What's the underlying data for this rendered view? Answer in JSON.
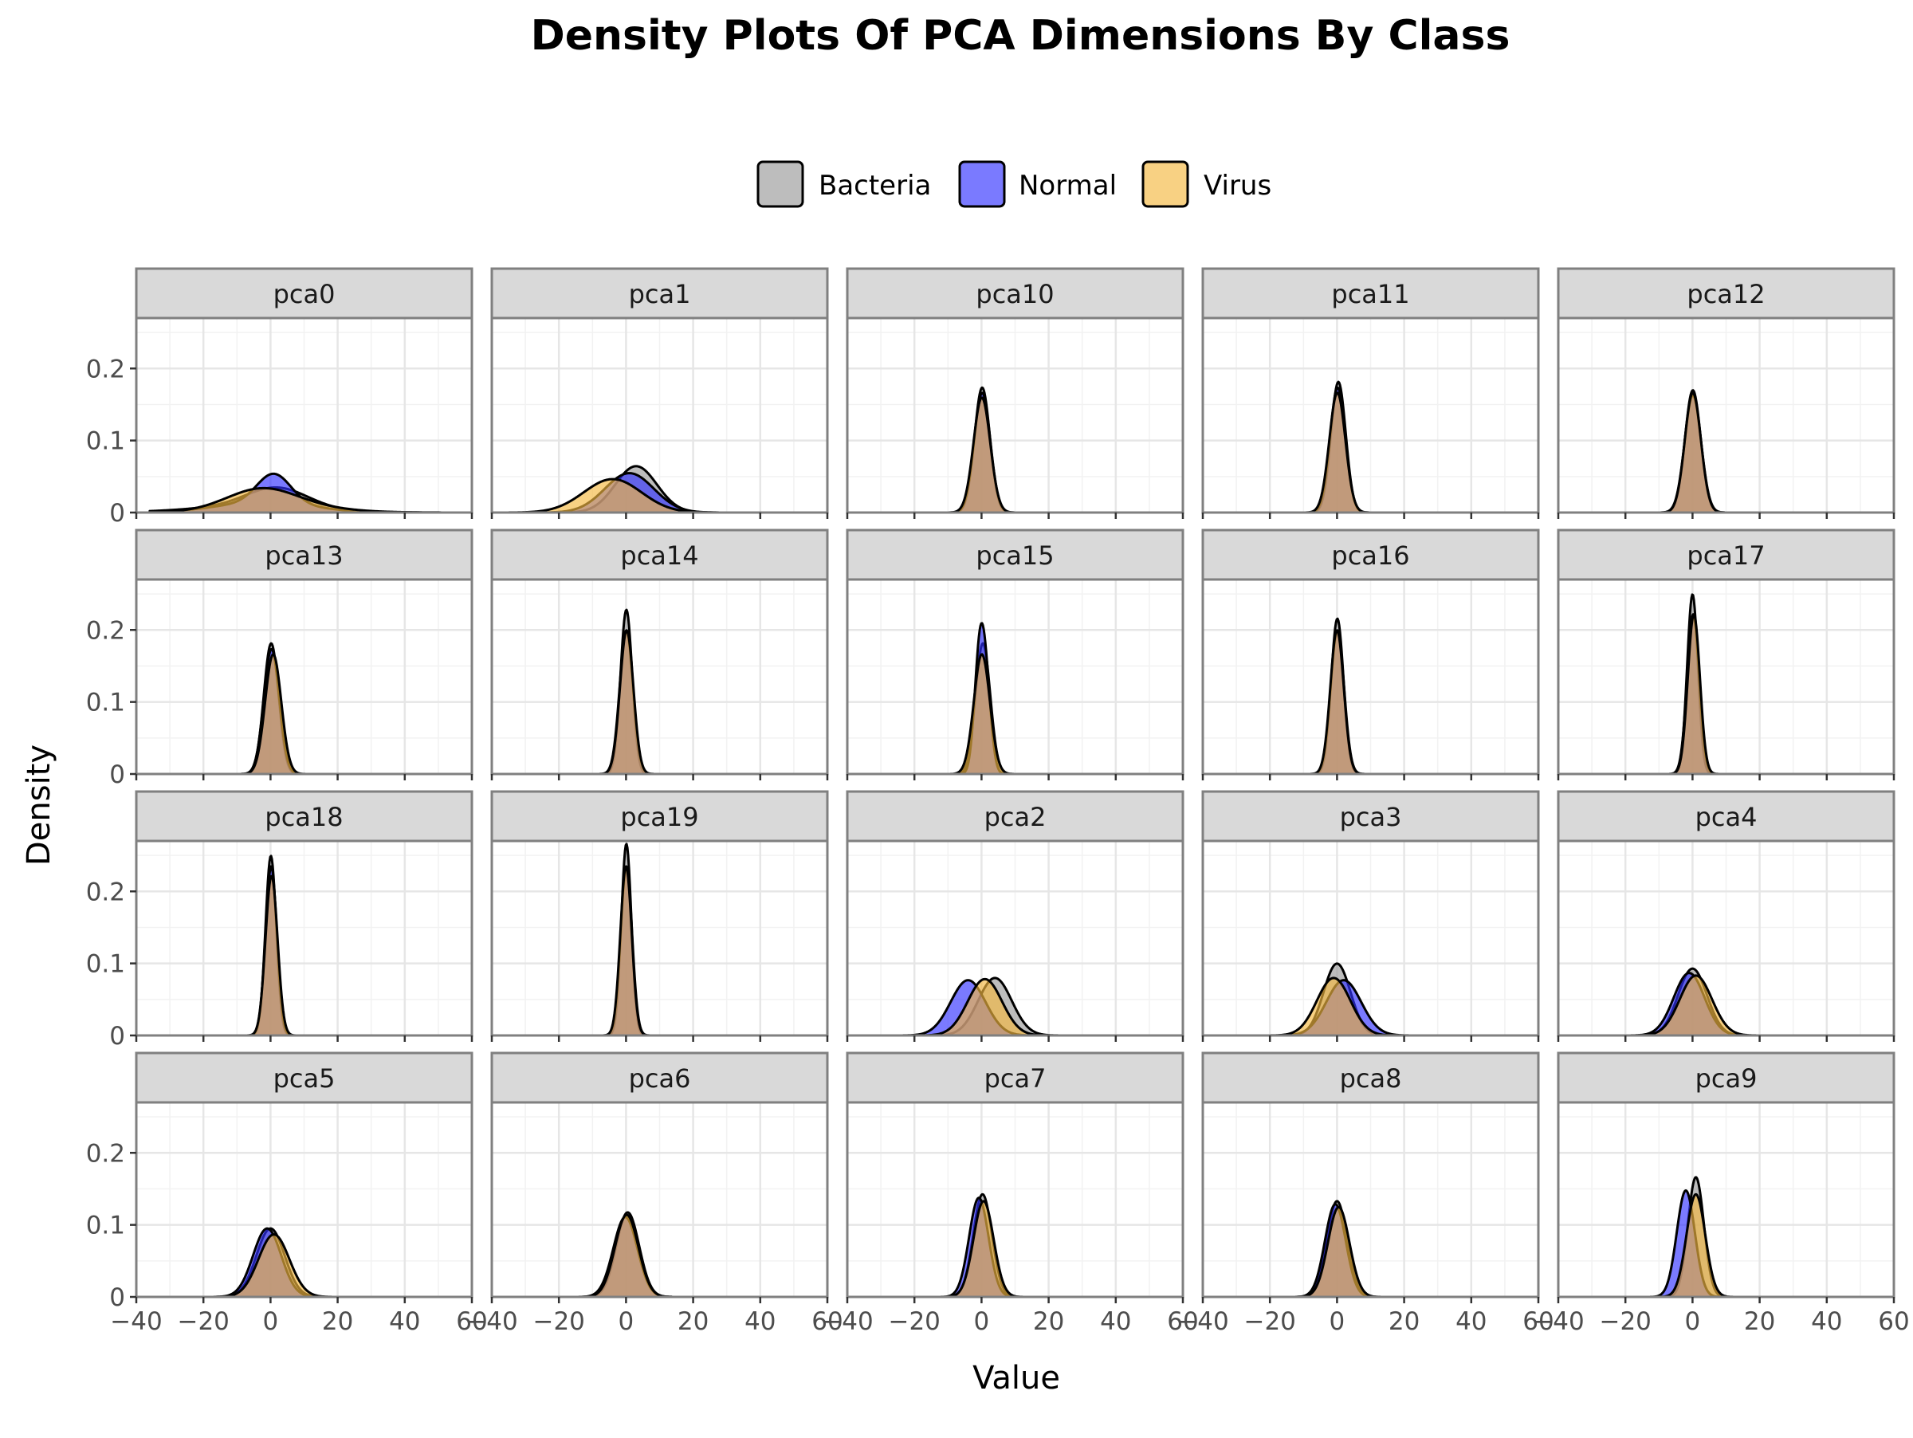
{
  "chart_data": {
    "type": "area",
    "title": "Density Plots Of PCA Dimensions By Class",
    "xlabel": "Value",
    "ylabel": "Density",
    "xlim": [
      -40,
      60
    ],
    "ylim": [
      0,
      0.27
    ],
    "x_ticks": [
      -40,
      -20,
      0,
      20,
      40,
      60
    ],
    "x_tick_labels": [
      "−40",
      "−20",
      "0",
      "20",
      "40",
      "60"
    ],
    "y_ticks": [
      0,
      0.1,
      0.2
    ],
    "y_tick_labels": [
      "0",
      "0.1",
      "0.2"
    ],
    "grid": true,
    "legend_position": "top",
    "x_range": [
      -36,
      55
    ],
    "series_meta": [
      {
        "name": "Bacteria",
        "fill": "#999999",
        "opacity": 0.65
      },
      {
        "name": "Normal",
        "fill": "#3333ff",
        "opacity": 0.65
      },
      {
        "name": "Virus",
        "fill": "#f5b841",
        "opacity": 0.65
      }
    ],
    "mixture_components": "per series: [weight, mean, sd] (Gaussian mixture approximation of each density curve)",
    "panels": [
      {
        "label": "pca0",
        "series": [
          {
            "name": "Bacteria",
            "components": [
              [
                0.6,
                2,
                9
              ],
              [
                0.4,
                -5,
                18
              ]
            ]
          },
          {
            "name": "Normal",
            "components": [
              [
                0.5,
                1,
                5
              ],
              [
                0.5,
                -2,
                14
              ]
            ]
          },
          {
            "name": "Virus",
            "components": [
              [
                0.6,
                -3,
                10
              ],
              [
                0.4,
                3,
                15
              ]
            ]
          }
        ]
      },
      {
        "label": "pca1",
        "series": [
          {
            "name": "Bacteria",
            "components": [
              [
                1.0,
                3,
                6.2
              ]
            ]
          },
          {
            "name": "Normal",
            "components": [
              [
                1.0,
                1,
                7.3
              ]
            ]
          },
          {
            "name": "Virus",
            "components": [
              [
                1.0,
                -4,
                8.6
              ]
            ]
          }
        ]
      },
      {
        "label": "pca10",
        "series": [
          {
            "name": "Bacteria",
            "components": [
              [
                1.0,
                0.2,
                2.3
              ]
            ]
          },
          {
            "name": "Normal",
            "components": [
              [
                1.0,
                0.2,
                2.4
              ]
            ]
          },
          {
            "name": "Virus",
            "components": [
              [
                1.0,
                0.1,
                2.5
              ]
            ]
          }
        ]
      },
      {
        "label": "pca11",
        "series": [
          {
            "name": "Bacteria",
            "components": [
              [
                1.0,
                0.4,
                2.2
              ]
            ]
          },
          {
            "name": "Normal",
            "components": [
              [
                1.0,
                0.2,
                2.3
              ]
            ]
          },
          {
            "name": "Virus",
            "components": [
              [
                1.0,
                0.1,
                2.4
              ]
            ]
          }
        ]
      },
      {
        "label": "pca12",
        "series": [
          {
            "name": "Bacteria",
            "components": [
              [
                1.0,
                0.1,
                2.35
              ]
            ]
          },
          {
            "name": "Normal",
            "components": [
              [
                1.0,
                0.1,
                2.45
              ]
            ]
          },
          {
            "name": "Virus",
            "components": [
              [
                1.0,
                0.1,
                2.4
              ]
            ]
          }
        ]
      },
      {
        "label": "pca13",
        "series": [
          {
            "name": "Bacteria",
            "components": [
              [
                1.0,
                0.2,
                2.2
              ]
            ]
          },
          {
            "name": "Normal",
            "components": [
              [
                1.0,
                0.3,
                2.3
              ]
            ]
          },
          {
            "name": "Virus",
            "components": [
              [
                1.0,
                0.8,
                2.4
              ]
            ]
          }
        ]
      },
      {
        "label": "pca14",
        "series": [
          {
            "name": "Bacteria",
            "components": [
              [
                1.0,
                0.1,
                1.75
              ]
            ]
          },
          {
            "name": "Normal",
            "components": [
              [
                1.0,
                0.1,
                2.0
              ]
            ]
          },
          {
            "name": "Virus",
            "components": [
              [
                1.0,
                0.2,
                2.0
              ]
            ]
          }
        ]
      },
      {
        "label": "pca15",
        "series": [
          {
            "name": "Bacteria",
            "components": [
              [
                1.0,
                0.4,
                2.2
              ]
            ]
          },
          {
            "name": "Normal",
            "components": [
              [
                0.5,
                -0.8,
                1.5
              ],
              [
                0.5,
                1.2,
                1.6
              ]
            ]
          },
          {
            "name": "Virus",
            "components": [
              [
                1.0,
                0.1,
                2.4
              ]
            ]
          }
        ]
      },
      {
        "label": "pca16",
        "series": [
          {
            "name": "Bacteria",
            "components": [
              [
                1.0,
                0.1,
                1.85
              ]
            ]
          },
          {
            "name": "Normal",
            "components": [
              [
                1.0,
                0.1,
                2.0
              ]
            ]
          },
          {
            "name": "Virus",
            "components": [
              [
                1.0,
                0.0,
                2.0
              ]
            ]
          }
        ]
      },
      {
        "label": "pca17",
        "series": [
          {
            "name": "Bacteria",
            "components": [
              [
                1.0,
                0.0,
                1.6
              ]
            ]
          },
          {
            "name": "Normal",
            "components": [
              [
                1.0,
                0.2,
                1.8
              ]
            ]
          },
          {
            "name": "Virus",
            "components": [
              [
                1.0,
                0.4,
                1.8
              ]
            ]
          }
        ]
      },
      {
        "label": "pca18",
        "series": [
          {
            "name": "Bacteria",
            "components": [
              [
                1.0,
                0.1,
                1.6
              ]
            ]
          },
          {
            "name": "Normal",
            "components": [
              [
                1.0,
                0.2,
                1.7
              ]
            ]
          },
          {
            "name": "Virus",
            "components": [
              [
                1.0,
                0.3,
                1.8
              ]
            ]
          }
        ]
      },
      {
        "label": "pca19",
        "series": [
          {
            "name": "Bacteria",
            "components": [
              [
                1.0,
                0.1,
                1.5
              ]
            ]
          },
          {
            "name": "Normal",
            "components": [
              [
                1.0,
                0.1,
                1.7
              ]
            ]
          },
          {
            "name": "Virus",
            "components": [
              [
                1.0,
                0.0,
                1.7
              ]
            ]
          }
        ]
      },
      {
        "label": "pca2",
        "series": [
          {
            "name": "Bacteria",
            "components": [
              [
                1.0,
                4,
                5.0
              ]
            ]
          },
          {
            "name": "Normal",
            "components": [
              [
                1.0,
                -4,
                5.2
              ]
            ]
          },
          {
            "name": "Virus",
            "components": [
              [
                1.0,
                1,
                5.1
              ]
            ]
          }
        ]
      },
      {
        "label": "pca3",
        "series": [
          {
            "name": "Bacteria",
            "components": [
              [
                1.0,
                0,
                4.0
              ]
            ]
          },
          {
            "name": "Normal",
            "components": [
              [
                1.0,
                2,
                5.2
              ]
            ]
          },
          {
            "name": "Virus",
            "components": [
              [
                1.0,
                -1,
                5.0
              ]
            ]
          }
        ]
      },
      {
        "label": "pca4",
        "series": [
          {
            "name": "Bacteria",
            "components": [
              [
                1.0,
                0,
                4.3
              ]
            ]
          },
          {
            "name": "Normal",
            "components": [
              [
                1.0,
                -1,
                4.6
              ]
            ]
          },
          {
            "name": "Virus",
            "components": [
              [
                1.0,
                1,
                4.8
              ]
            ]
          }
        ]
      },
      {
        "label": "pca5",
        "series": [
          {
            "name": "Bacteria",
            "components": [
              [
                1.0,
                0,
                4.2
              ]
            ]
          },
          {
            "name": "Normal",
            "components": [
              [
                1.0,
                -1,
                4.2
              ]
            ]
          },
          {
            "name": "Virus",
            "components": [
              [
                1.0,
                1,
                4.6
              ]
            ]
          }
        ]
      },
      {
        "label": "pca6",
        "series": [
          {
            "name": "Bacteria",
            "components": [
              [
                1.0,
                0.5,
                3.4
              ]
            ]
          },
          {
            "name": "Normal",
            "components": [
              [
                1.0,
                -0.2,
                3.6
              ]
            ]
          },
          {
            "name": "Virus",
            "components": [
              [
                1.0,
                0.2,
                3.5
              ]
            ]
          }
        ]
      },
      {
        "label": "pca7",
        "series": [
          {
            "name": "Bacteria",
            "components": [
              [
                1.0,
                0.3,
                2.8
              ]
            ]
          },
          {
            "name": "Normal",
            "components": [
              [
                1.0,
                -0.8,
                2.9
              ]
            ]
          },
          {
            "name": "Virus",
            "components": [
              [
                1.0,
                0.6,
                3.0
              ]
            ]
          }
        ]
      },
      {
        "label": "pca8",
        "series": [
          {
            "name": "Bacteria",
            "components": [
              [
                1.0,
                0,
                3.0
              ]
            ]
          },
          {
            "name": "Normal",
            "components": [
              [
                1.0,
                -0.5,
                3.1
              ]
            ]
          },
          {
            "name": "Virus",
            "components": [
              [
                1.0,
                0.5,
                3.2
              ]
            ]
          }
        ]
      },
      {
        "label": "pca9",
        "series": [
          {
            "name": "Bacteria",
            "components": [
              [
                1.0,
                1,
                2.4
              ]
            ]
          },
          {
            "name": "Normal",
            "components": [
              [
                1.0,
                -2,
                2.7
              ]
            ]
          },
          {
            "name": "Virus",
            "components": [
              [
                1.0,
                1,
                2.8
              ]
            ]
          }
        ]
      }
    ]
  }
}
